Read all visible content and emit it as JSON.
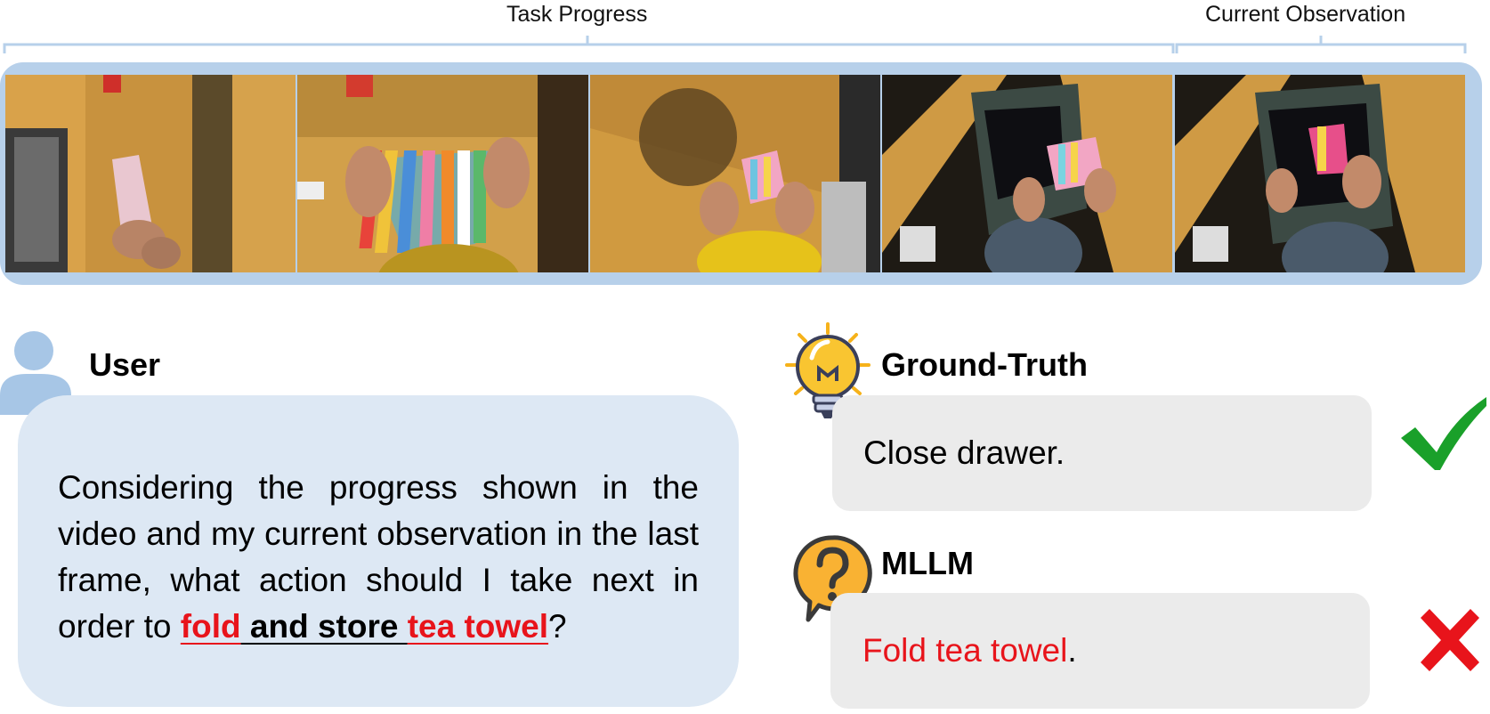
{
  "headers": {
    "task_progress": "Task Progress",
    "current_observation": "Current Observation"
  },
  "user": {
    "label": "User",
    "question_prefix": "Considering the progress shown in the video and my current observation in the last frame, what action should I take next in order to ",
    "hl_fold": "fold",
    "hl_and_store": " and store ",
    "hl_tea_towel": "tea towel",
    "question_suffix": "?"
  },
  "ground_truth": {
    "label": "Ground-Truth",
    "answer": "Close drawer."
  },
  "mllm": {
    "label": "MLLM",
    "answer_wrong": "Fold tea towel",
    "answer_period": "."
  },
  "icons": {
    "avatar": "user-avatar-icon",
    "gt": "lightbulb-icon",
    "mllm": "question-bubble-icon",
    "correct": "checkmark-icon",
    "wrong": "cross-icon"
  },
  "colors": {
    "strip": "#b7d0ea",
    "user_bubble": "#dde8f4",
    "answer_box": "#ebebeb",
    "wrong_red": "#e8141b",
    "check_green": "#1aa02a"
  }
}
